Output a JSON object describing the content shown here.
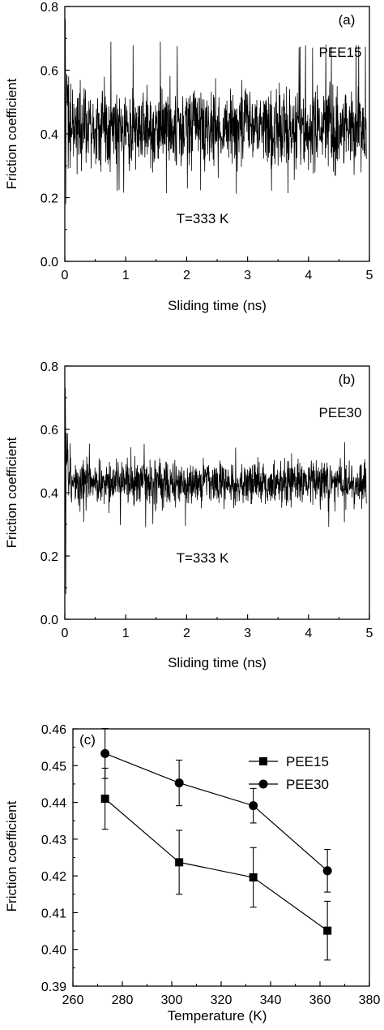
{
  "chart_data": [
    {
      "type": "line",
      "panel_label": "(a)",
      "annotation": "PEE15",
      "condition": "T=333 K",
      "xlabel": "Sliding time (ns)",
      "ylabel": "Friction coefficient",
      "xlim": [
        0,
        5
      ],
      "ylim": [
        0,
        0.8
      ],
      "xticks": [
        "0",
        "1",
        "2",
        "3",
        "4",
        "5"
      ],
      "yticks": [
        "0.0",
        "0.2",
        "0.4",
        "0.6",
        "0.8"
      ],
      "series": [
        {
          "x_range_ns": [
            0,
            4.95
          ],
          "mean": 0.42,
          "fluctuation_range": [
            0.21,
            0.69
          ],
          "initial_transient": {
            "min": 0.1,
            "max": 0.76
          }
        }
      ]
    },
    {
      "type": "line",
      "panel_label": "(b)",
      "annotation": "PEE30",
      "condition": "T=333 K",
      "xlabel": "Sliding time (ns)",
      "ylabel": "Friction coefficient",
      "xlim": [
        0,
        5
      ],
      "ylim": [
        0,
        0.8
      ],
      "xticks": [
        "0",
        "1",
        "2",
        "3",
        "4",
        "5"
      ],
      "yticks": [
        "0.0",
        "0.2",
        "0.4",
        "0.6",
        "0.8"
      ],
      "series": [
        {
          "x_range_ns": [
            0,
            4.95
          ],
          "mean": 0.43,
          "fluctuation_range": [
            0.29,
            0.56
          ],
          "initial_transient": {
            "min": 0.0,
            "max": 0.73
          }
        }
      ]
    },
    {
      "type": "line",
      "panel_label": "(c)",
      "xlabel": "Temperature (K)",
      "ylabel": "Friction coefficient",
      "xlim": [
        260,
        380
      ],
      "ylim": [
        0.39,
        0.46
      ],
      "xticks": [
        "260",
        "280",
        "300",
        "320",
        "340",
        "360",
        "380"
      ],
      "yticks": [
        "0.39",
        "0.40",
        "0.41",
        "0.42",
        "0.43",
        "0.44",
        "0.45",
        "0.46"
      ],
      "legend_position": "top-right",
      "series": [
        {
          "name": "PEE15",
          "marker": "square",
          "x": [
            273,
            303,
            333,
            363
          ],
          "y": [
            0.441,
            0.4237,
            0.4196,
            0.4051
          ],
          "err": [
            0.0083,
            0.0087,
            0.0081,
            0.008
          ]
        },
        {
          "name": "PEE30",
          "marker": "circle",
          "x": [
            273,
            303,
            333,
            363
          ],
          "y": [
            0.4533,
            0.4453,
            0.4391,
            0.4214
          ],
          "err": [
            0.0068,
            0.0062,
            0.0047,
            0.0058
          ]
        }
      ]
    }
  ]
}
